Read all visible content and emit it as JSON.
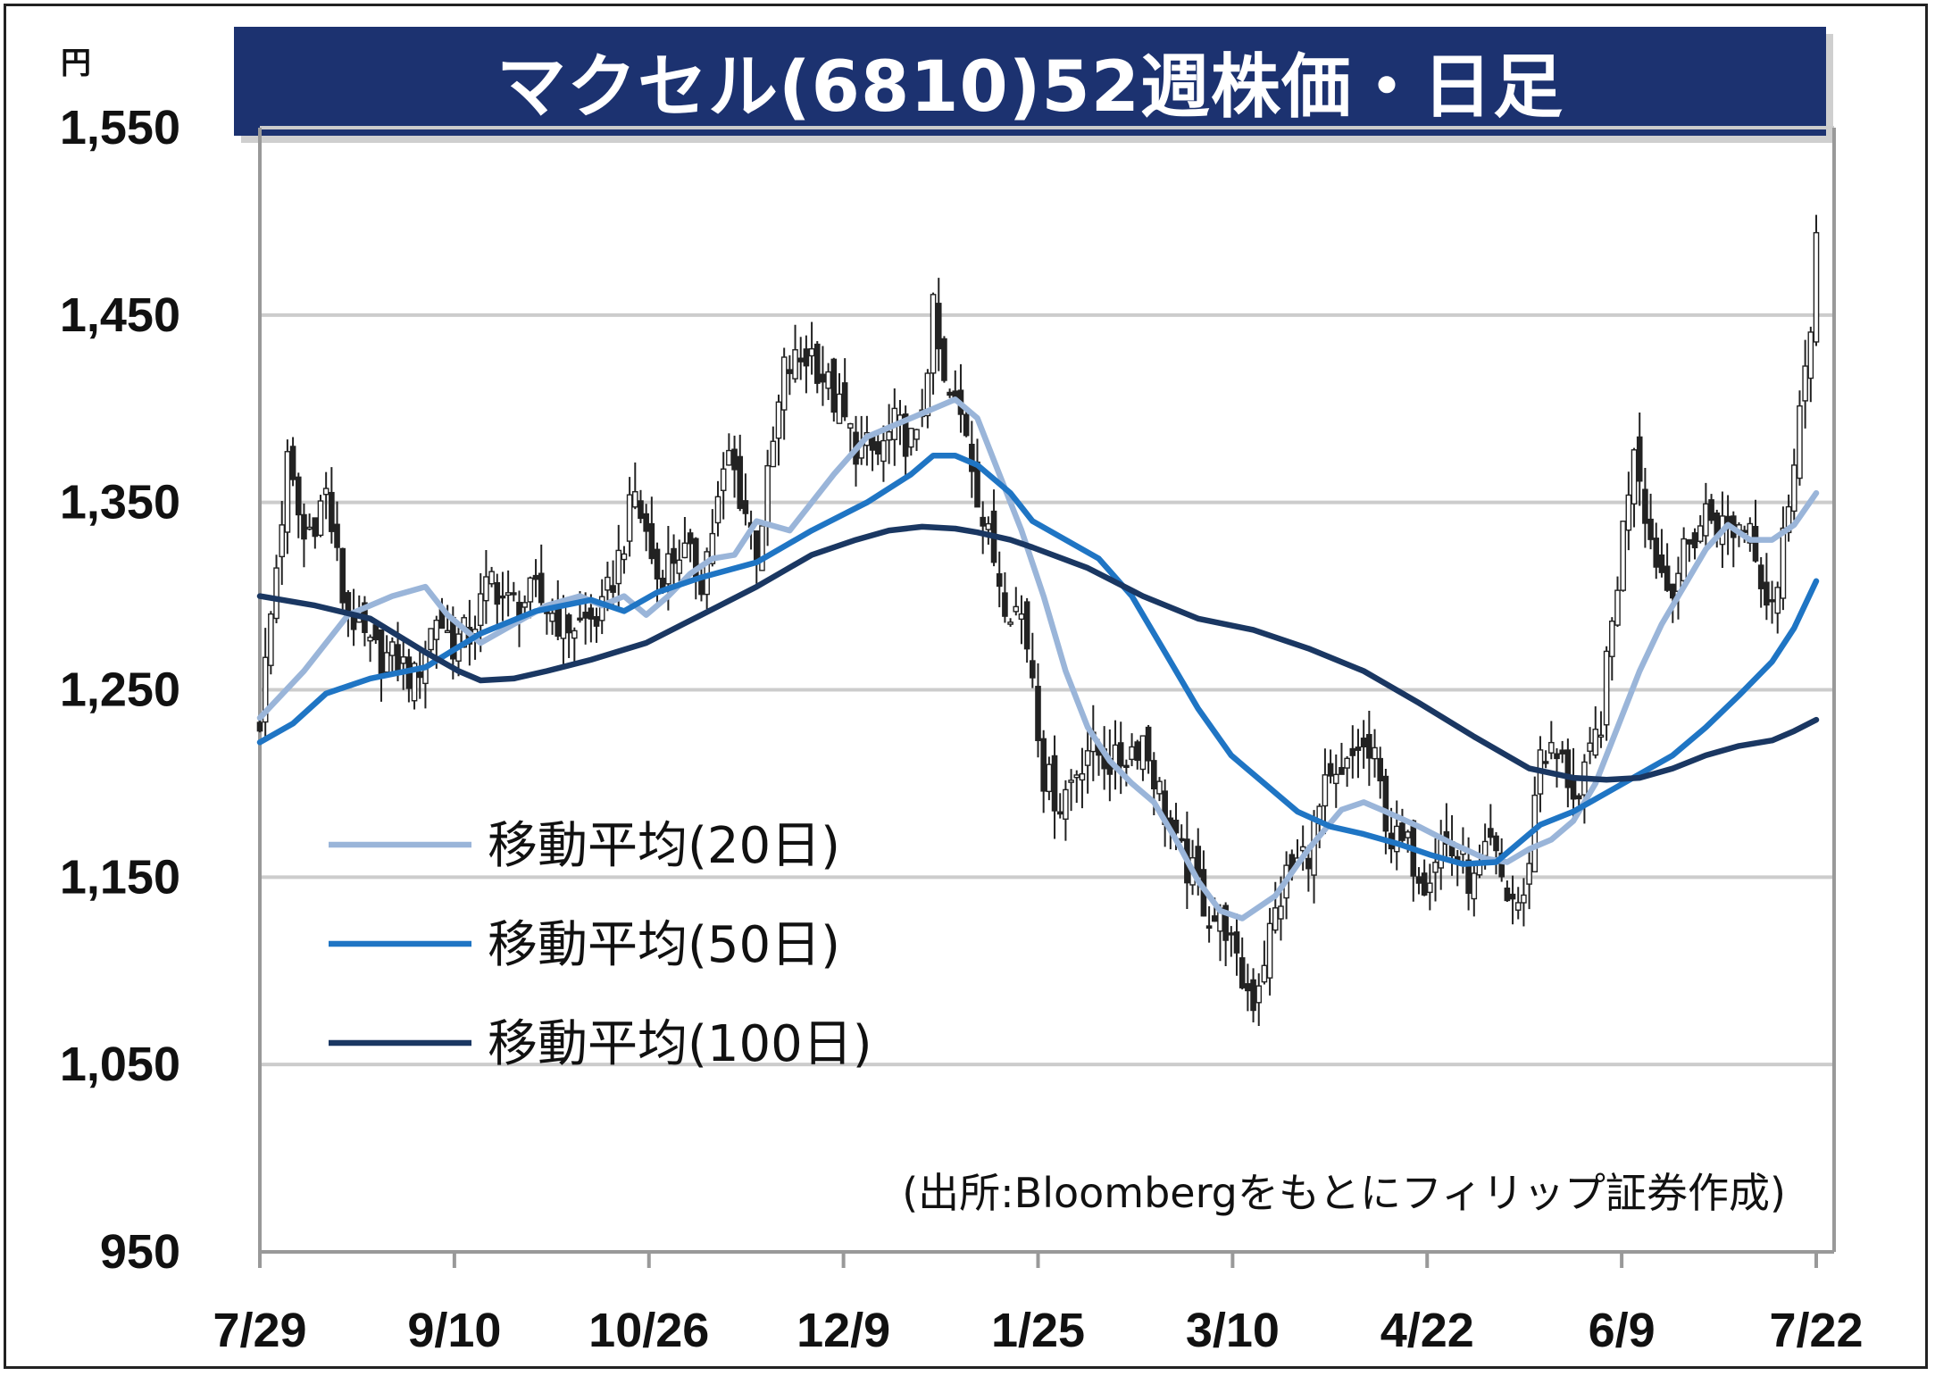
{
  "chart_data": {
    "type": "candlestick",
    "title": "マクセル(6810)52週株価・日足",
    "y_unit": "円",
    "ylim": [
      950,
      1550
    ],
    "y_ticks": [
      950,
      1050,
      1150,
      1250,
      1350,
      1450,
      1550
    ],
    "y_tick_labels": [
      "950",
      "1,050",
      "1,150",
      "1,250",
      "1,350",
      "1,450",
      "1,550"
    ],
    "x_tick_labels": [
      "7/29",
      "9/10",
      "10/26",
      "12/9",
      "1/25",
      "3/10",
      "4/22",
      "6/9",
      "7/22"
    ],
    "x_tick_index": [
      0,
      30,
      60,
      90,
      120,
      150,
      180,
      210,
      240
    ],
    "n_days": 241,
    "grid": true,
    "source": "(出所:Bloombergをもとにフィリップ証券作成)",
    "colors": {
      "title_bg": "#1c3270",
      "grid": "#cccccc",
      "candle": "#222222",
      "ma20": "#9ab5d9",
      "ma50": "#1f75c4",
      "ma100": "#1a3762"
    },
    "price_path": [
      [
        0,
        1235
      ],
      [
        5,
        1370
      ],
      [
        8,
        1330
      ],
      [
        12,
        1355
      ],
      [
        15,
        1300
      ],
      [
        20,
        1270
      ],
      [
        25,
        1265
      ],
      [
        28,
        1255
      ],
      [
        32,
        1290
      ],
      [
        35,
        1275
      ],
      [
        38,
        1280
      ],
      [
        42,
        1310
      ],
      [
        45,
        1295
      ],
      [
        50,
        1300
      ],
      [
        55,
        1285
      ],
      [
        58,
        1285
      ],
      [
        62,
        1290
      ],
      [
        65,
        1320
      ],
      [
        68,
        1355
      ],
      [
        72,
        1310
      ],
      [
        76,
        1325
      ],
      [
        80,
        1310
      ],
      [
        85,
        1375
      ],
      [
        90,
        1325
      ],
      [
        92,
        1360
      ],
      [
        95,
        1420
      ],
      [
        100,
        1430
      ],
      [
        104,
        1405
      ],
      [
        108,
        1380
      ],
      [
        112,
        1375
      ],
      [
        115,
        1390
      ],
      [
        119,
        1380
      ],
      [
        122,
        1450
      ],
      [
        124,
        1410
      ],
      [
        128,
        1390
      ],
      [
        131,
        1340
      ],
      [
        135,
        1300
      ],
      [
        138,
        1290
      ],
      [
        140,
        1260
      ],
      [
        142,
        1205
      ],
      [
        145,
        1190
      ],
      [
        150,
        1220
      ],
      [
        155,
        1210
      ],
      [
        160,
        1225
      ],
      [
        163,
        1195
      ],
      [
        166,
        1165
      ],
      [
        168,
        1155
      ],
      [
        170,
        1145
      ],
      [
        172,
        1130
      ],
      [
        175,
        1125
      ],
      [
        177,
        1100
      ],
      [
        180,
        1085
      ],
      [
        183,
        1120
      ],
      [
        186,
        1150
      ],
      [
        190,
        1165
      ],
      [
        193,
        1195
      ],
      [
        196,
        1200
      ],
      [
        199,
        1220
      ],
      [
        202,
        1210
      ],
      [
        205,
        1170
      ],
      [
        208,
        1165
      ],
      [
        211,
        1150
      ],
      [
        214,
        1170
      ],
      [
        217,
        1160
      ],
      [
        220,
        1145
      ],
      [
        223,
        1165
      ],
      [
        226,
        1140
      ],
      [
        229,
        1135
      ],
      [
        232,
        1220
      ],
      [
        236,
        1210
      ],
      [
        239,
        1190
      ],
      [
        243,
        1235
      ],
      [
        246,
        1310
      ],
      [
        249,
        1385
      ],
      [
        252,
        1330
      ],
      [
        255,
        1305
      ],
      [
        258,
        1320
      ],
      [
        262,
        1345
      ],
      [
        266,
        1335
      ],
      [
        270,
        1340
      ],
      [
        273,
        1300
      ],
      [
        275,
        1305
      ],
      [
        278,
        1380
      ],
      [
        280,
        1420
      ],
      [
        281,
        1430
      ],
      [
        282,
        1495
      ]
    ],
    "series": [
      {
        "name": "移動平均(20日)",
        "x": [
          0,
          8,
          16,
          24,
          30,
          34,
          40,
          46,
          52,
          58,
          62,
          66,
          70,
          74,
          78,
          82,
          86,
          90,
          96,
          104,
          110,
          114,
          118,
          122,
          126,
          130,
          134,
          138,
          142,
          146,
          150,
          154,
          158,
          162,
          166,
          170,
          174,
          178,
          184,
          190,
          196,
          200,
          204,
          210,
          216,
          222,
          226,
          230,
          234,
          238,
          242,
          246,
          250,
          254,
          258,
          262,
          266,
          270,
          274,
          278,
          282
        ],
        "values": [
          1235,
          1260,
          1290,
          1300,
          1305,
          1290,
          1275,
          1285,
          1295,
          1300,
          1295,
          1300,
          1290,
          1300,
          1312,
          1320,
          1322,
          1340,
          1335,
          1365,
          1385,
          1390,
          1395,
          1400,
          1405,
          1395,
          1365,
          1335,
          1300,
          1260,
          1230,
          1212,
          1200,
          1190,
          1170,
          1148,
          1132,
          1128,
          1140,
          1165,
          1186,
          1190,
          1185,
          1177,
          1168,
          1160,
          1158,
          1165,
          1170,
          1180,
          1200,
          1230,
          1260,
          1285,
          1305,
          1325,
          1338,
          1330,
          1330,
          1338,
          1355
        ]
      },
      {
        "name": "移動平均(50日)",
        "x": [
          0,
          6,
          12,
          20,
          30,
          40,
          50,
          60,
          66,
          72,
          80,
          90,
          100,
          110,
          118,
          122,
          126,
          130,
          136,
          140,
          146,
          152,
          158,
          164,
          170,
          176,
          182,
          188,
          194,
          200,
          206,
          212,
          218,
          224,
          228,
          232,
          238,
          244,
          250,
          256,
          262,
          268,
          274,
          278,
          282
        ],
        "values": [
          1222,
          1232,
          1248,
          1256,
          1262,
          1280,
          1292,
          1298,
          1292,
          1302,
          1310,
          1318,
          1335,
          1350,
          1365,
          1375,
          1375,
          1370,
          1355,
          1340,
          1330,
          1320,
          1300,
          1270,
          1240,
          1215,
          1200,
          1185,
          1177,
          1173,
          1168,
          1162,
          1157,
          1158,
          1168,
          1178,
          1185,
          1195,
          1205,
          1215,
          1230,
          1247,
          1265,
          1283,
          1308
        ]
      },
      {
        "name": "移動平均(100日)",
        "x": [
          0,
          10,
          20,
          30,
          36,
          40,
          46,
          52,
          60,
          70,
          80,
          90,
          100,
          108,
          114,
          120,
          126,
          130,
          136,
          140,
          150,
          160,
          170,
          180,
          190,
          200,
          210,
          220,
          230,
          238,
          244,
          250,
          256,
          262,
          268,
          274,
          278,
          282
        ],
        "values": [
          1300,
          1295,
          1288,
          1270,
          1260,
          1255,
          1256,
          1260,
          1266,
          1275,
          1290,
          1305,
          1322,
          1330,
          1335,
          1337,
          1336,
          1334,
          1330,
          1326,
          1315,
          1300,
          1288,
          1282,
          1272,
          1260,
          1243,
          1225,
          1208,
          1203,
          1202,
          1203,
          1208,
          1215,
          1220,
          1223,
          1228,
          1234
        ]
      }
    ],
    "legend": [
      {
        "label": "移動平均(20日)",
        "color": "#9ab5d9"
      },
      {
        "label": "移動平均(50日)",
        "color": "#1f75c4"
      },
      {
        "label": "移動平均(100日)",
        "color": "#1a3762"
      }
    ]
  }
}
